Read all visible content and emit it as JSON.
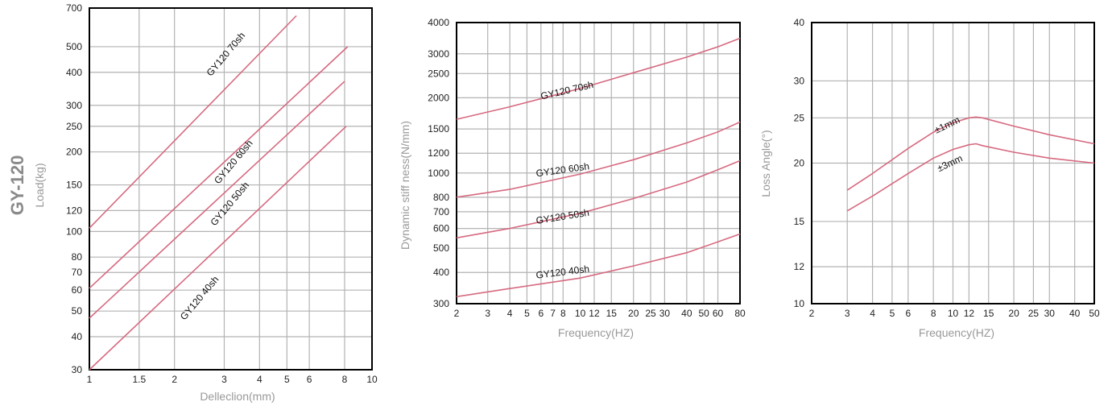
{
  "product_title": "GY-120",
  "colors": {
    "curve": "#d66a80",
    "grid": "#b3b3b3",
    "frame": "#000000",
    "label": "#999999",
    "tick": "#222222"
  },
  "chart_data": [
    {
      "type": "line",
      "xlabel": "Delleclion(mm)",
      "ylabel": "Load(kg)",
      "xscale": "log",
      "yscale": "log",
      "xlim": [
        1,
        10
      ],
      "ylim": [
        30,
        700
      ],
      "xticks": [
        1,
        1.5,
        2,
        3,
        4,
        5,
        6,
        8,
        10
      ],
      "xtick_labels": [
        "1",
        "1.5",
        "2",
        "3",
        "4",
        "5",
        "6",
        "8",
        "10"
      ],
      "yticks": [
        30,
        40,
        50,
        60,
        70,
        80,
        100,
        120,
        150,
        200,
        250,
        300,
        400,
        500,
        700
      ],
      "ytick_labels": [
        "30",
        "40",
        "50",
        "60",
        "70",
        "80",
        "100",
        "120",
        "150",
        "200",
        "250",
        "300",
        "400",
        "500",
        "700"
      ],
      "grid": true,
      "series": [
        {
          "name": "GY120 70sh",
          "x": [
            1,
            5.4
          ],
          "y": [
            103,
            655
          ]
        },
        {
          "name": "GY120 60sh",
          "x": [
            1,
            8.2
          ],
          "y": [
            61,
            500
          ]
        },
        {
          "name": "GY120 50sh",
          "x": [
            1,
            8.0
          ],
          "y": [
            47,
            370
          ]
        },
        {
          "name": "GY120 40sh",
          "x": [
            1,
            8.1
          ],
          "y": [
            30,
            250
          ]
        }
      ]
    },
    {
      "type": "line",
      "xlabel": "Frequency(HZ)",
      "ylabel": "Dynamic stiff ness(N/mm)",
      "xscale": "log",
      "yscale": "log",
      "xlim": [
        2,
        80
      ],
      "ylim": [
        300,
        4000
      ],
      "xticks": [
        2,
        3,
        4,
        5,
        6,
        7,
        8,
        10,
        12,
        15,
        20,
        25,
        30,
        40,
        50,
        60,
        80
      ],
      "xtick_labels": [
        "2",
        "3",
        "4",
        "5",
        "6",
        "7",
        "8",
        "10",
        "12",
        "15",
        "20",
        "25",
        "30",
        "40",
        "50",
        "60",
        "80"
      ],
      "yticks": [
        300,
        400,
        500,
        600,
        700,
        800,
        1000,
        1200,
        1500,
        2000,
        2500,
        3000,
        4000
      ],
      "ytick_labels": [
        "300",
        "400",
        "500",
        "600",
        "700",
        "800",
        "1000",
        "1200",
        "1500",
        "2000",
        "2500",
        "3000",
        "4000"
      ],
      "grid": true,
      "series": [
        {
          "name": "GY120 70sh",
          "x": [
            2,
            4,
            10,
            20,
            40,
            60,
            80
          ],
          "y": [
            1640,
            1840,
            2180,
            2520,
            2910,
            3200,
            3460
          ]
        },
        {
          "name": "GY120 60sh",
          "x": [
            2,
            4,
            10,
            20,
            40,
            60,
            80
          ],
          "y": [
            800,
            860,
            990,
            1130,
            1320,
            1460,
            1600
          ]
        },
        {
          "name": "GY120 50sh",
          "x": [
            2,
            4,
            10,
            20,
            40,
            60,
            80
          ],
          "y": [
            550,
            600,
            690,
            790,
            920,
            1030,
            1120
          ]
        },
        {
          "name": "GY120 40sh",
          "x": [
            2,
            4,
            10,
            20,
            40,
            60,
            80
          ],
          "y": [
            320,
            345,
            380,
            425,
            480,
            530,
            570
          ]
        }
      ]
    },
    {
      "type": "line",
      "xlabel": "Frequency(HZ)",
      "ylabel": "Loss Angle(°)",
      "xscale": "log",
      "yscale": "log",
      "xlim": [
        2,
        50
      ],
      "ylim": [
        10,
        40
      ],
      "xticks": [
        2,
        3,
        4,
        5,
        6,
        8,
        10,
        12,
        15,
        20,
        25,
        30,
        40,
        50
      ],
      "xtick_labels": [
        "2",
        "3",
        "4",
        "5",
        "6",
        "8",
        "10",
        "12",
        "15",
        "20",
        "25",
        "30",
        "40",
        "50"
      ],
      "yticks": [
        10,
        12,
        15,
        20,
        25,
        30,
        40
      ],
      "ytick_labels": [
        "10",
        "12",
        "15",
        "20",
        "25",
        "30",
        "40"
      ],
      "grid": true,
      "series": [
        {
          "name": "±1mm",
          "x": [
            3,
            4,
            6,
            8,
            10,
            12,
            13,
            14,
            20,
            30,
            50
          ],
          "y": [
            17.5,
            19.0,
            21.5,
            23.3,
            24.4,
            25.0,
            25.1,
            25.0,
            24.0,
            23.0,
            22.0
          ]
        },
        {
          "name": "±3mm",
          "x": [
            3,
            4,
            6,
            8,
            10,
            12,
            13,
            14,
            20,
            30,
            50
          ],
          "y": [
            15.8,
            17.0,
            19.0,
            20.5,
            21.4,
            21.9,
            22.0,
            21.8,
            21.1,
            20.5,
            20.0
          ]
        }
      ]
    }
  ]
}
